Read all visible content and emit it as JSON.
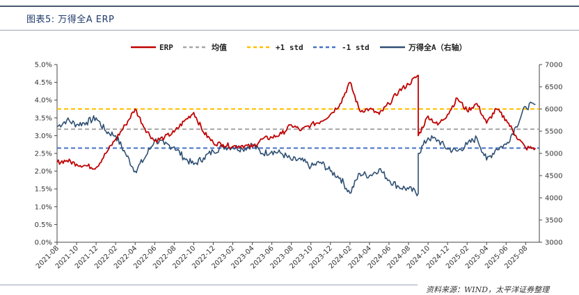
{
  "header": {
    "title": "图表5: 万得全A ERP"
  },
  "footer": {
    "source": "资料来源：WIND，太平洋证券整理"
  },
  "colors": {
    "erp": "#c00000",
    "mean": "#a6a6a6",
    "plus_std": "#ffc000",
    "minus_std": "#4472c4",
    "index": "#2e4f73"
  },
  "chart_data": {
    "type": "line",
    "title": "",
    "legend_position": "top",
    "y_left": {
      "ticks": [
        "0.0%",
        "0.5%",
        "1.0%",
        "1.5%",
        "2.0%",
        "2.5%",
        "3.0%",
        "3.5%",
        "4.0%",
        "4.5%",
        "5.0%"
      ],
      "min": 0.0,
      "max": 5.0
    },
    "y_right": {
      "ticks": [
        "3000",
        "3500",
        "4000",
        "4500",
        "5000",
        "5500",
        "6000",
        "6500",
        "7000"
      ],
      "min": 3000,
      "max": 7000
    },
    "x_ticks": [
      "2021-08",
      "2021-10",
      "2021-12",
      "2022-02",
      "2022-04",
      "2022-06",
      "2022-08",
      "2022-10",
      "2022-12",
      "2023-02",
      "2023-04",
      "2023-06",
      "2023-08",
      "2023-10",
      "2023-12",
      "2024-02",
      "2024-04",
      "2024-06",
      "2024-08",
      "2024-10",
      "2024-12",
      "2025-02",
      "2025-04",
      "2025-06",
      "2025-08"
    ],
    "series": [
      {
        "name": "ERP",
        "axis": "left",
        "style": "solid",
        "points": [
          [
            "2021-08",
            2.25
          ],
          [
            "2021-09",
            2.3
          ],
          [
            "2021-10",
            2.2
          ],
          [
            "2021-11",
            2.15
          ],
          [
            "2021-12",
            2.1
          ],
          [
            "2022-01",
            2.5
          ],
          [
            "2022-02",
            2.9
          ],
          [
            "2022-03",
            3.3
          ],
          [
            "2022-04",
            3.75
          ],
          [
            "2022-05",
            3.2
          ],
          [
            "2022-06",
            2.85
          ],
          [
            "2022-07",
            2.95
          ],
          [
            "2022-08",
            3.1
          ],
          [
            "2022-09",
            3.4
          ],
          [
            "2022-10",
            3.65
          ],
          [
            "2022-11",
            3.1
          ],
          [
            "2022-12",
            2.8
          ],
          [
            "2023-01",
            2.75
          ],
          [
            "2023-02",
            2.7
          ],
          [
            "2023-03",
            2.72
          ],
          [
            "2023-04",
            2.68
          ],
          [
            "2023-05",
            2.9
          ],
          [
            "2023-06",
            2.95
          ],
          [
            "2023-07",
            3.05
          ],
          [
            "2023-08",
            3.3
          ],
          [
            "2023-09",
            3.15
          ],
          [
            "2023-10",
            3.3
          ],
          [
            "2023-11",
            3.4
          ],
          [
            "2023-12",
            3.6
          ],
          [
            "2024-01",
            3.9
          ],
          [
            "2024-02",
            4.5
          ],
          [
            "2024-03",
            3.7
          ],
          [
            "2024-04",
            3.75
          ],
          [
            "2024-05",
            3.6
          ],
          [
            "2024-06",
            3.9
          ],
          [
            "2024-07",
            4.25
          ],
          [
            "2024-08",
            4.45
          ],
          [
            "2024-09",
            4.7
          ],
          [
            "2024-09",
            3.0
          ],
          [
            "2024-10",
            3.55
          ],
          [
            "2024-11",
            3.3
          ],
          [
            "2024-12",
            3.6
          ],
          [
            "2025-01",
            4.05
          ],
          [
            "2025-02",
            3.7
          ],
          [
            "2025-03",
            3.9
          ],
          [
            "2025-04",
            3.35
          ],
          [
            "2025-05",
            3.75
          ],
          [
            "2025-06",
            3.45
          ],
          [
            "2025-07",
            3.0
          ],
          [
            "2025-08",
            2.65
          ],
          [
            "2025-09",
            2.65
          ]
        ]
      },
      {
        "name": "均值",
        "axis": "left",
        "style": "dashed",
        "value": 3.18
      },
      {
        "name": "+1 std",
        "axis": "left",
        "style": "dashed",
        "value": 3.75
      },
      {
        "name": "-1 std",
        "axis": "left",
        "style": "dashed",
        "value": 2.65
      },
      {
        "name": "万得全A（右轴）",
        "axis": "right",
        "style": "solid",
        "points": [
          [
            "2021-08",
            5600
          ],
          [
            "2021-09",
            5750
          ],
          [
            "2021-10",
            5650
          ],
          [
            "2021-11",
            5700
          ],
          [
            "2021-12",
            5800
          ],
          [
            "2022-01",
            5500
          ],
          [
            "2022-02",
            5400
          ],
          [
            "2022-03",
            5000
          ],
          [
            "2022-04",
            4600
          ],
          [
            "2022-05",
            4900
          ],
          [
            "2022-06",
            5300
          ],
          [
            "2022-07",
            5200
          ],
          [
            "2022-08",
            5150
          ],
          [
            "2022-09",
            4900
          ],
          [
            "2022-10",
            4750
          ],
          [
            "2022-11",
            4900
          ],
          [
            "2022-12",
            5050
          ],
          [
            "2023-01",
            5150
          ],
          [
            "2023-02",
            5150
          ],
          [
            "2023-03",
            5100
          ],
          [
            "2023-04",
            5200
          ],
          [
            "2023-05",
            5000
          ],
          [
            "2023-06",
            5050
          ],
          [
            "2023-07",
            5000
          ],
          [
            "2023-08",
            4850
          ],
          [
            "2023-09",
            4850
          ],
          [
            "2023-10",
            4700
          ],
          [
            "2023-11",
            4800
          ],
          [
            "2023-12",
            4600
          ],
          [
            "2024-01",
            4450
          ],
          [
            "2024-02",
            4100
          ],
          [
            "2024-03",
            4550
          ],
          [
            "2024-04",
            4500
          ],
          [
            "2024-05",
            4650
          ],
          [
            "2024-06",
            4400
          ],
          [
            "2024-07",
            4250
          ],
          [
            "2024-08",
            4200
          ],
          [
            "2024-09",
            4100
          ],
          [
            "2024-09",
            5000
          ],
          [
            "2024-10",
            5350
          ],
          [
            "2024-11",
            5300
          ],
          [
            "2024-12",
            5100
          ],
          [
            "2025-01",
            5050
          ],
          [
            "2025-02",
            5200
          ],
          [
            "2025-03",
            5350
          ],
          [
            "2025-04",
            4850
          ],
          [
            "2025-05",
            5100
          ],
          [
            "2025-06",
            5200
          ],
          [
            "2025-07",
            5600
          ],
          [
            "2025-08",
            6050
          ],
          [
            "2025-09",
            6100
          ]
        ]
      }
    ]
  }
}
